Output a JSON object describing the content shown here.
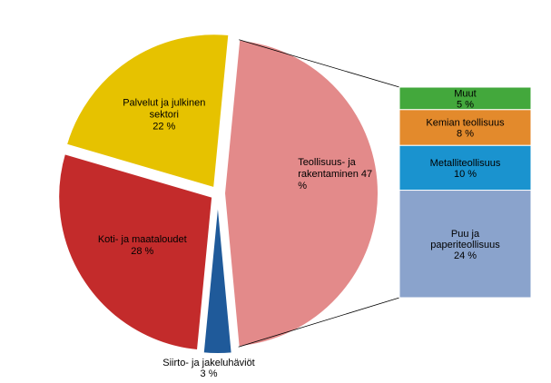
{
  "chart_data": {
    "type": "bar-of-pie",
    "pie": {
      "slices": [
        {
          "key": "teollisuus",
          "lines": [
            "Teollisuus- ja",
            "rakentaminen 47",
            "%"
          ],
          "value": 47,
          "color": "#e38a8a"
        },
        {
          "key": "siirto",
          "lines": [
            "Siirto- ja jakeluhäviöt",
            "3 %"
          ],
          "value": 3,
          "color": "#1f5a9a"
        },
        {
          "key": "koti",
          "lines": [
            "Koti- ja maataloudet",
            "28 %"
          ],
          "value": 28,
          "color": "#c32b2b"
        },
        {
          "key": "palvelut",
          "lines": [
            "Palvelut ja julkinen",
            "sektori",
            "22 %"
          ],
          "value": 22,
          "color": "#e6c200"
        }
      ],
      "exploded": "teollisuus"
    },
    "bar": {
      "parent": "teollisuus",
      "segments": [
        {
          "key": "puu",
          "lines": [
            "Puu ja",
            "paperiteollisuus",
            "24 %"
          ],
          "value": 24,
          "color": "#8aa3cc"
        },
        {
          "key": "metalli",
          "lines": [
            "Metalliteollisuus",
            "10 %"
          ],
          "value": 10,
          "color": "#1a93cf"
        },
        {
          "key": "kemian",
          "lines": [
            "Kemian teollisuus",
            "8 %"
          ],
          "value": 8,
          "color": "#e38a2c"
        },
        {
          "key": "muut",
          "lines": [
            "Muut",
            "5 %"
          ],
          "value": 5,
          "color": "#43a83c"
        }
      ]
    }
  }
}
